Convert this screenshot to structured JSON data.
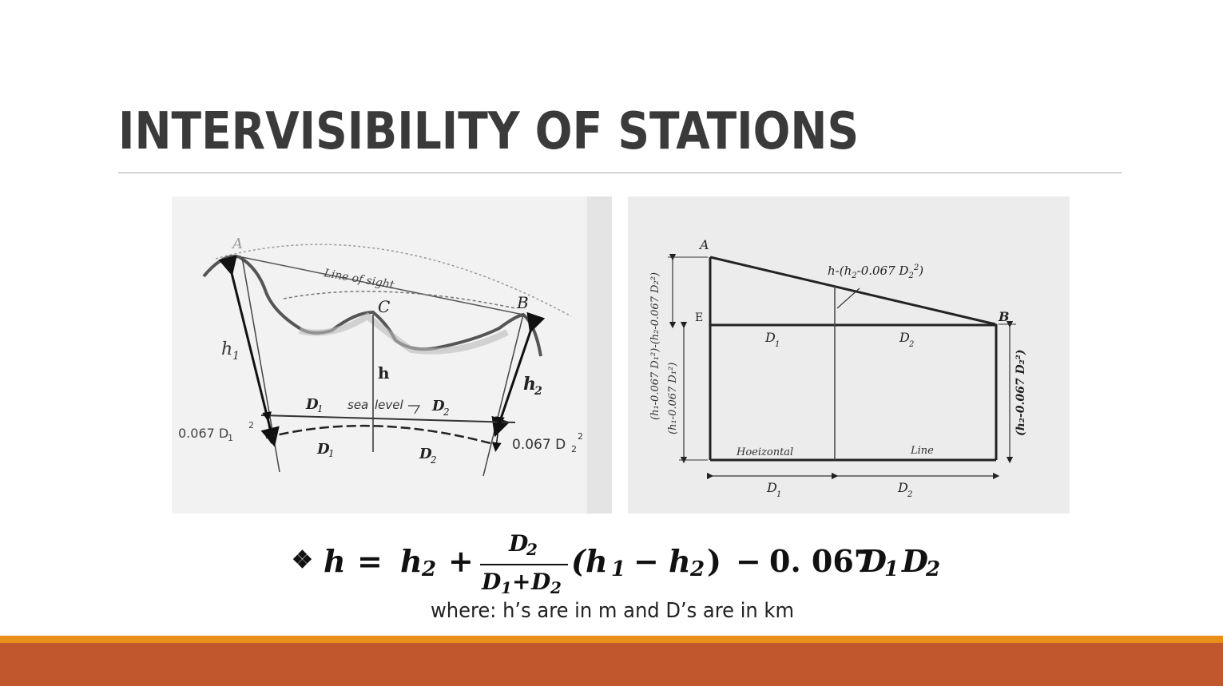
{
  "slide": {
    "title": "INTERVISIBILITY OF STATIONS"
  },
  "figure_left": {
    "labels": {
      "a": "A",
      "b": "B",
      "c": "C",
      "line_of_sight": "Line of sight",
      "h1": "h",
      "h1_sub": "1",
      "h2": "h",
      "h2_sub": "2",
      "h": "h",
      "d1_top": "D",
      "d1_top_sub": "1",
      "d2_top": "D",
      "d2_top_sub": "2",
      "sea": "sea",
      "level": "level",
      "d1_bottom": "D",
      "d1_bottom_sub": "1",
      "d2_bottom": "D",
      "d2_bottom_sub": "2",
      "corr_left": "0.067 D",
      "corr_left_sub": "1",
      "corr_left_sup": "2",
      "corr_right": "0.067 D",
      "corr_right_sub": "2",
      "corr_right_sup": "2"
    }
  },
  "figure_right": {
    "labels": {
      "a": "A",
      "b": "B",
      "e": "E",
      "top_callout": "h-(h",
      "top_callout_sub": "2",
      "top_callout_rest": "-0.067 D",
      "top_callout_sub2": "2",
      "top_callout_sup": "2",
      "top_callout_end": ")",
      "d1_mid": "D",
      "d1_mid_sub": "1",
      "d2_mid": "D",
      "d2_mid_sub": "2",
      "horizontal": "Hoeizontal",
      "line": "Line",
      "d1_bottom": "D",
      "d1_bottom_sub": "1",
      "d2_bottom": "D",
      "d2_bottom_sub": "2",
      "left_outer_label": "(h₁-0.067 D₁²)-(h₂-0.067 D₂²)",
      "left_inner_label": "(h₁-0.067 D₁²)",
      "right_label": "(h₂-0.067 D₂²)"
    }
  },
  "formula": {
    "bullet": "❖",
    "lhs": "h",
    "equals": "=",
    "h2": "h",
    "h2_sub": "2",
    "plus": "+",
    "numerator": "D",
    "numerator_sub": "2",
    "denominator_a": "D",
    "denominator_a_sub": "1",
    "denominator_plus": "+",
    "denominator_b": "D",
    "denominator_b_sub": "2",
    "paren_open": "(h",
    "paren_h1_sub": "1",
    "minus": "−",
    "paren_h2": "h",
    "paren_h2_sub": "2",
    "paren_close": ")",
    "minus2": "−",
    "constant": "0. 067",
    "d1": "D",
    "d1_sub": "1",
    "d2": "D",
    "d2_sub": "2"
  },
  "note": "where: h’s are in m and D’s are in km",
  "colors": {
    "title": "#3a3a3a",
    "band_orange": "#e8901a",
    "band_rust": "#c0572d"
  }
}
